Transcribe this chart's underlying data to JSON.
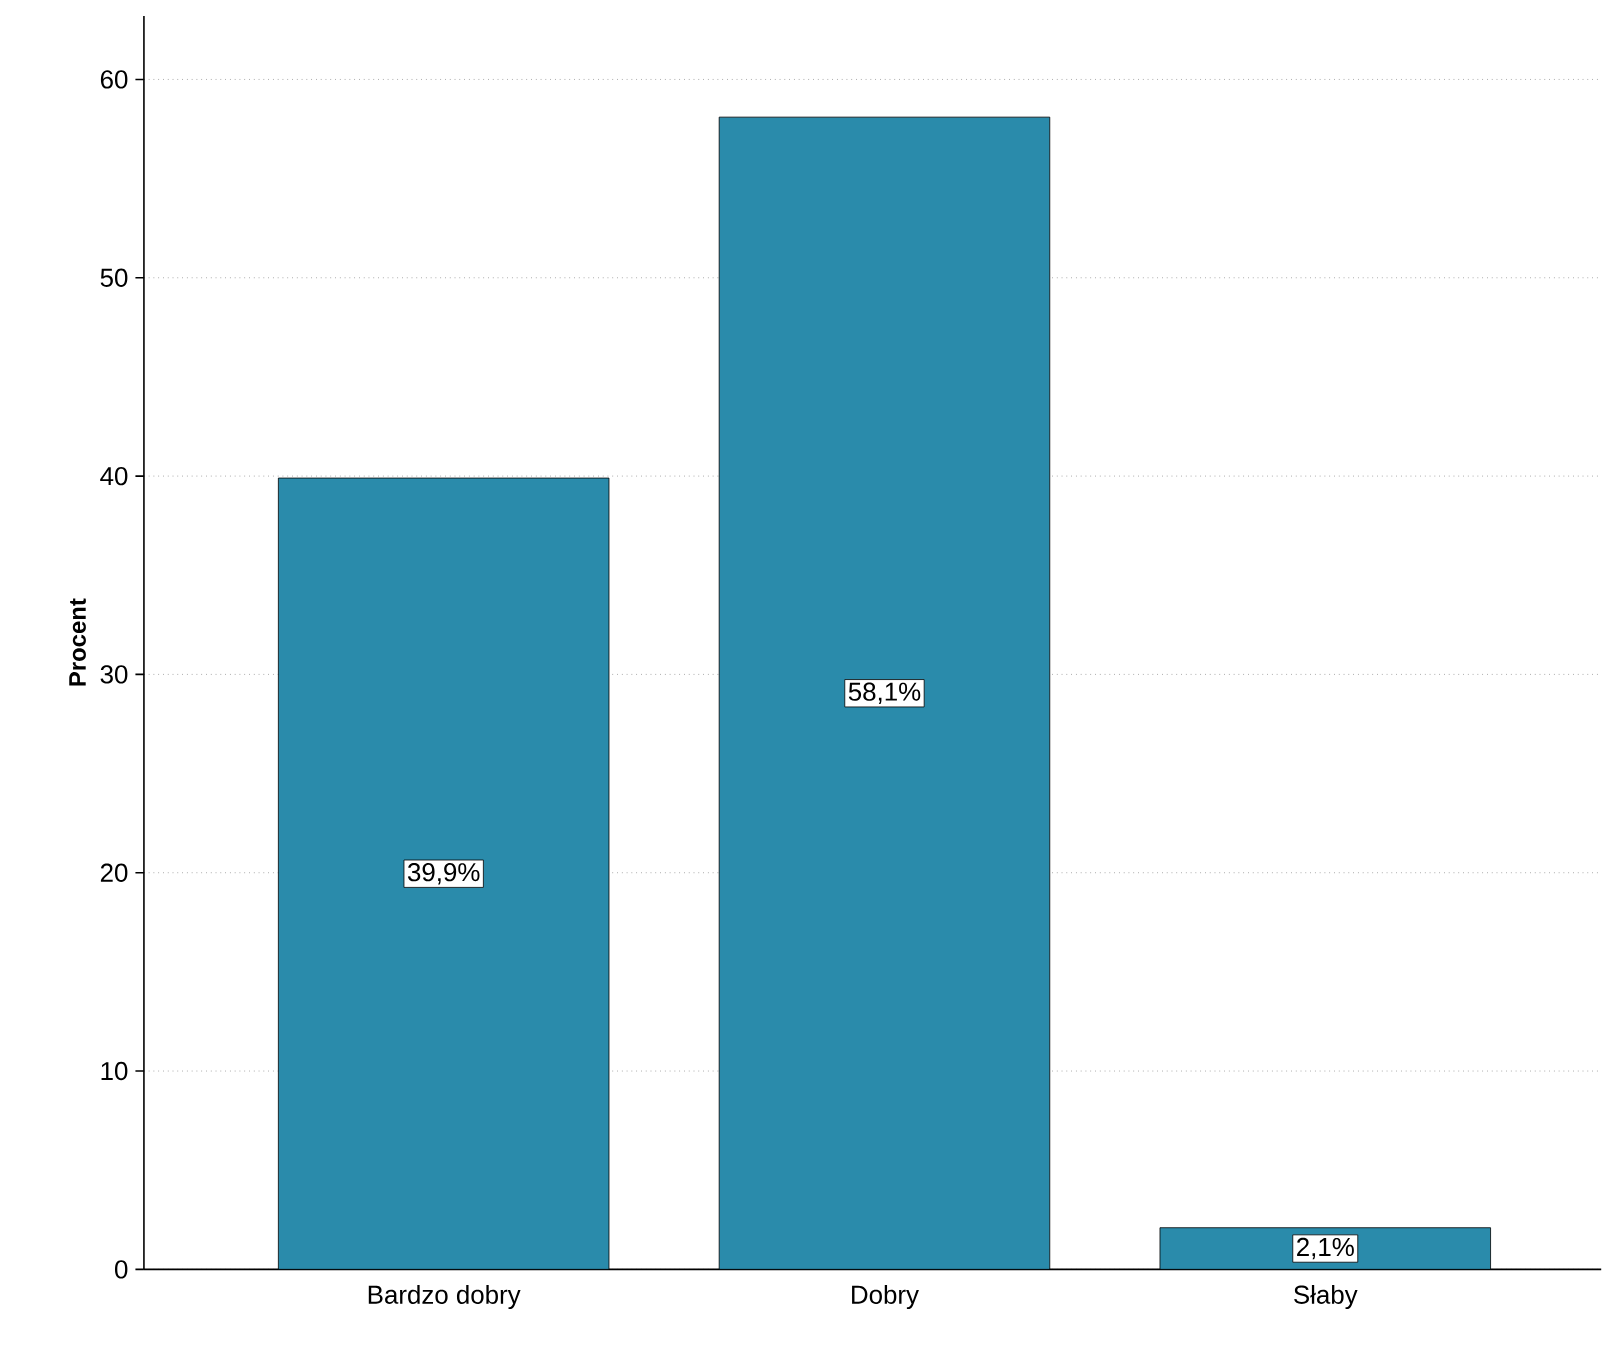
{
  "chart_data": {
    "type": "bar",
    "ylabel": "Procent",
    "categories": [
      "Bardzo dobry",
      "Dobry",
      "Słaby"
    ],
    "values": [
      39.9,
      58.1,
      2.1
    ],
    "value_labels": [
      "39,9%",
      "58,1%",
      "2,1%"
    ],
    "color": "#2a8bab",
    "ylim": [
      0,
      63.2
    ],
    "yticks": [
      0,
      10,
      20,
      30,
      40,
      50,
      60
    ],
    "grid": "y"
  }
}
